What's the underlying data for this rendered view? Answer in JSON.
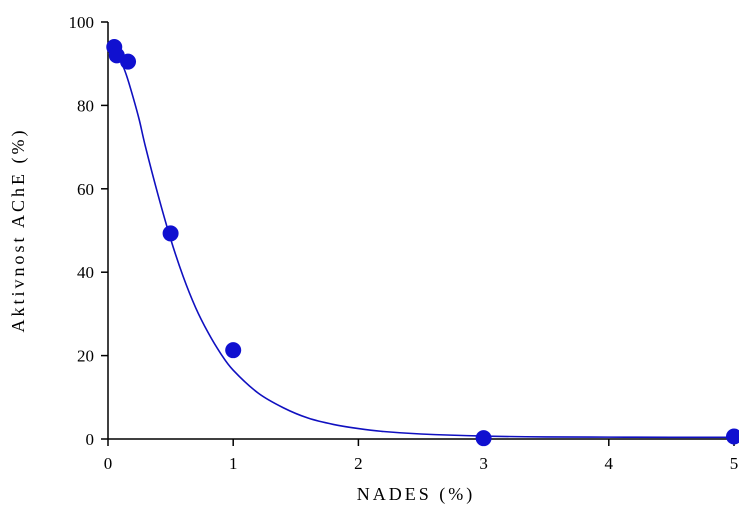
{
  "chart_data": {
    "type": "scatter",
    "title": "",
    "xlabel": "NADES (%)",
    "ylabel": "Aktivnost AChE (%)",
    "xlim": [
      0,
      5
    ],
    "ylim": [
      0,
      100
    ],
    "x_ticks": [
      0,
      1,
      2,
      3,
      4,
      5
    ],
    "y_ticks": [
      0,
      20,
      40,
      60,
      80,
      100
    ],
    "grid": false,
    "legend": "none",
    "colors": {
      "points": "#1010d0",
      "curve": "#1010c0",
      "axes": "#000000"
    },
    "series": [
      {
        "type": "scatter",
        "x": [
          0.05,
          0.07,
          0.16,
          0.5,
          1.0,
          3.0,
          5.0
        ],
        "y": [
          94,
          92,
          90.5,
          49.3,
          21.3,
          0.2,
          0.6
        ]
      },
      {
        "type": "line",
        "x": [
          0.06,
          0.1,
          0.15,
          0.2,
          0.25,
          0.3,
          0.4,
          0.5,
          0.6,
          0.7,
          0.8,
          0.9,
          1.0,
          1.2,
          1.4,
          1.6,
          1.8,
          2.0,
          2.2,
          2.5,
          3.0,
          3.5,
          4.0,
          4.5,
          5.0
        ],
        "y": [
          94,
          91,
          87,
          82,
          76.5,
          70,
          58.5,
          48,
          39,
          31.5,
          25.5,
          20.5,
          16.5,
          11,
          7.5,
          5,
          3.5,
          2.5,
          1.8,
          1.2,
          0.7,
          0.5,
          0.45,
          0.4,
          0.4
        ]
      }
    ]
  }
}
